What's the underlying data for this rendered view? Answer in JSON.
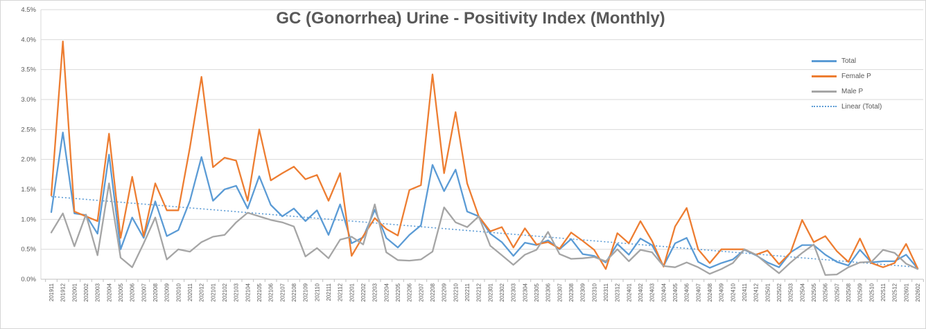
{
  "chart": {
    "title_label": "GC (Gonorrhea) Urine - Positivity Index (Monthly)",
    "colors": {
      "total": "#5B9BD5",
      "female": "#ED7D31",
      "male": "#A5A5A5",
      "trendline": "#5B9BD5",
      "gridline": "#D9D9D9",
      "axis_line": "#BFBFBF",
      "tick_text": "#595959",
      "title_text": "#595959",
      "background": "#FFFFFF"
    }
  },
  "chart_data": {
    "type": "line",
    "title": "GC (Gonorrhea) Urine - Positivity Index (Monthly)",
    "xlabel": "",
    "ylabel": "",
    "grid": true,
    "legend_position": "right",
    "legend": [
      "Total",
      "Female P",
      "Male P",
      "Linear (Total)"
    ],
    "y_axis": {
      "min": 0,
      "max": 4.5,
      "step": 0.5,
      "format": "percent",
      "tick_labels": [
        "0.0%",
        "0.5%",
        "1.0%",
        "1.5%",
        "2.0%",
        "2.5%",
        "3.0%",
        "3.5%",
        "4.0%",
        "4.5%"
      ]
    },
    "x_axis": {
      "label_rotation": -90
    },
    "categories": [
      "201911",
      "201912",
      "202001",
      "202002",
      "202003",
      "202004",
      "202005",
      "202006",
      "202007",
      "202008",
      "202009",
      "202010",
      "202011",
      "202012",
      "202101",
      "202102",
      "202103",
      "202104",
      "202105",
      "202106",
      "202107",
      "202108",
      "202109",
      "202110",
      "202111",
      "202112",
      "202201",
      "202202",
      "202203",
      "202204",
      "202205",
      "202206",
      "202207",
      "202208",
      "202209",
      "202210",
      "202211",
      "202212",
      "202301",
      "202302",
      "202303",
      "202304",
      "202305",
      "202306",
      "202307",
      "202308",
      "202309",
      "202310",
      "202311",
      "202312",
      "202401",
      "202402",
      "202403",
      "202404",
      "202405",
      "202406",
      "202407",
      "202408",
      "202409",
      "202410",
      "202411",
      "202412",
      "202501",
      "202502",
      "202503",
      "202504",
      "202505",
      "202506",
      "202507",
      "202508",
      "202509",
      "202510",
      "202511",
      "202512",
      "202601",
      "202602"
    ],
    "series": [
      {
        "name": "Total",
        "color": "#5B9BD5",
        "style": "solid",
        "values": [
          1.12,
          2.45,
          1.1,
          1.07,
          0.76,
          2.08,
          0.5,
          1.03,
          0.69,
          1.3,
          0.72,
          0.82,
          1.31,
          2.04,
          1.31,
          1.5,
          1.56,
          1.18,
          1.72,
          1.24,
          1.05,
          1.18,
          0.97,
          1.15,
          0.74,
          1.25,
          0.6,
          0.7,
          1.16,
          0.69,
          0.53,
          0.74,
          0.9,
          1.91,
          1.47,
          1.83,
          1.13,
          1.05,
          0.76,
          0.62,
          0.39,
          0.61,
          0.57,
          0.65,
          0.5,
          0.67,
          0.42,
          0.39,
          0.28,
          0.59,
          0.41,
          0.68,
          0.57,
          0.22,
          0.6,
          0.69,
          0.29,
          0.19,
          0.27,
          0.33,
          0.49,
          0.4,
          0.28,
          0.2,
          0.45,
          0.57,
          0.57,
          0.41,
          0.29,
          0.23,
          0.49,
          0.28,
          0.3,
          0.3,
          0.41,
          0.18
        ]
      },
      {
        "name": "Female P",
        "color": "#ED7D31",
        "style": "solid",
        "values": [
          1.4,
          3.97,
          1.13,
          1.05,
          0.97,
          2.43,
          0.69,
          1.71,
          0.72,
          1.6,
          1.15,
          1.15,
          2.2,
          3.38,
          1.87,
          2.03,
          1.98,
          1.31,
          2.5,
          1.65,
          1.77,
          1.88,
          1.67,
          1.74,
          1.31,
          1.77,
          0.39,
          0.72,
          1.02,
          0.84,
          0.73,
          1.49,
          1.57,
          3.42,
          1.77,
          2.79,
          1.6,
          1.05,
          0.8,
          0.87,
          0.53,
          0.85,
          0.58,
          0.62,
          0.51,
          0.78,
          0.64,
          0.49,
          0.17,
          0.77,
          0.6,
          0.97,
          0.64,
          0.21,
          0.88,
          1.19,
          0.5,
          0.27,
          0.5,
          0.5,
          0.5,
          0.41,
          0.48,
          0.25,
          0.45,
          0.99,
          0.62,
          0.72,
          0.47,
          0.29,
          0.68,
          0.27,
          0.2,
          0.27,
          0.59,
          0.18
        ]
      },
      {
        "name": "Male P",
        "color": "#A5A5A5",
        "style": "solid",
        "values": [
          0.78,
          1.1,
          0.55,
          1.08,
          0.4,
          1.6,
          0.36,
          0.2,
          0.6,
          1.03,
          0.33,
          0.5,
          0.46,
          0.62,
          0.71,
          0.74,
          0.95,
          1.11,
          1.05,
          0.99,
          0.95,
          0.88,
          0.38,
          0.52,
          0.35,
          0.66,
          0.71,
          0.58,
          1.25,
          0.45,
          0.32,
          0.31,
          0.33,
          0.46,
          1.2,
          0.95,
          0.87,
          1.05,
          0.56,
          0.4,
          0.24,
          0.41,
          0.49,
          0.79,
          0.42,
          0.34,
          0.35,
          0.37,
          0.3,
          0.5,
          0.3,
          0.49,
          0.45,
          0.22,
          0.2,
          0.28,
          0.2,
          0.09,
          0.17,
          0.27,
          0.5,
          0.41,
          0.25,
          0.1,
          0.28,
          0.44,
          0.58,
          0.07,
          0.08,
          0.2,
          0.28,
          0.29,
          0.49,
          0.44,
          0.26,
          0.17
        ]
      }
    ],
    "trendline": {
      "name": "Linear (Total)",
      "color": "#5B9BD5",
      "style": "dotted",
      "start_value": 1.38,
      "end_value": 0.2
    }
  }
}
